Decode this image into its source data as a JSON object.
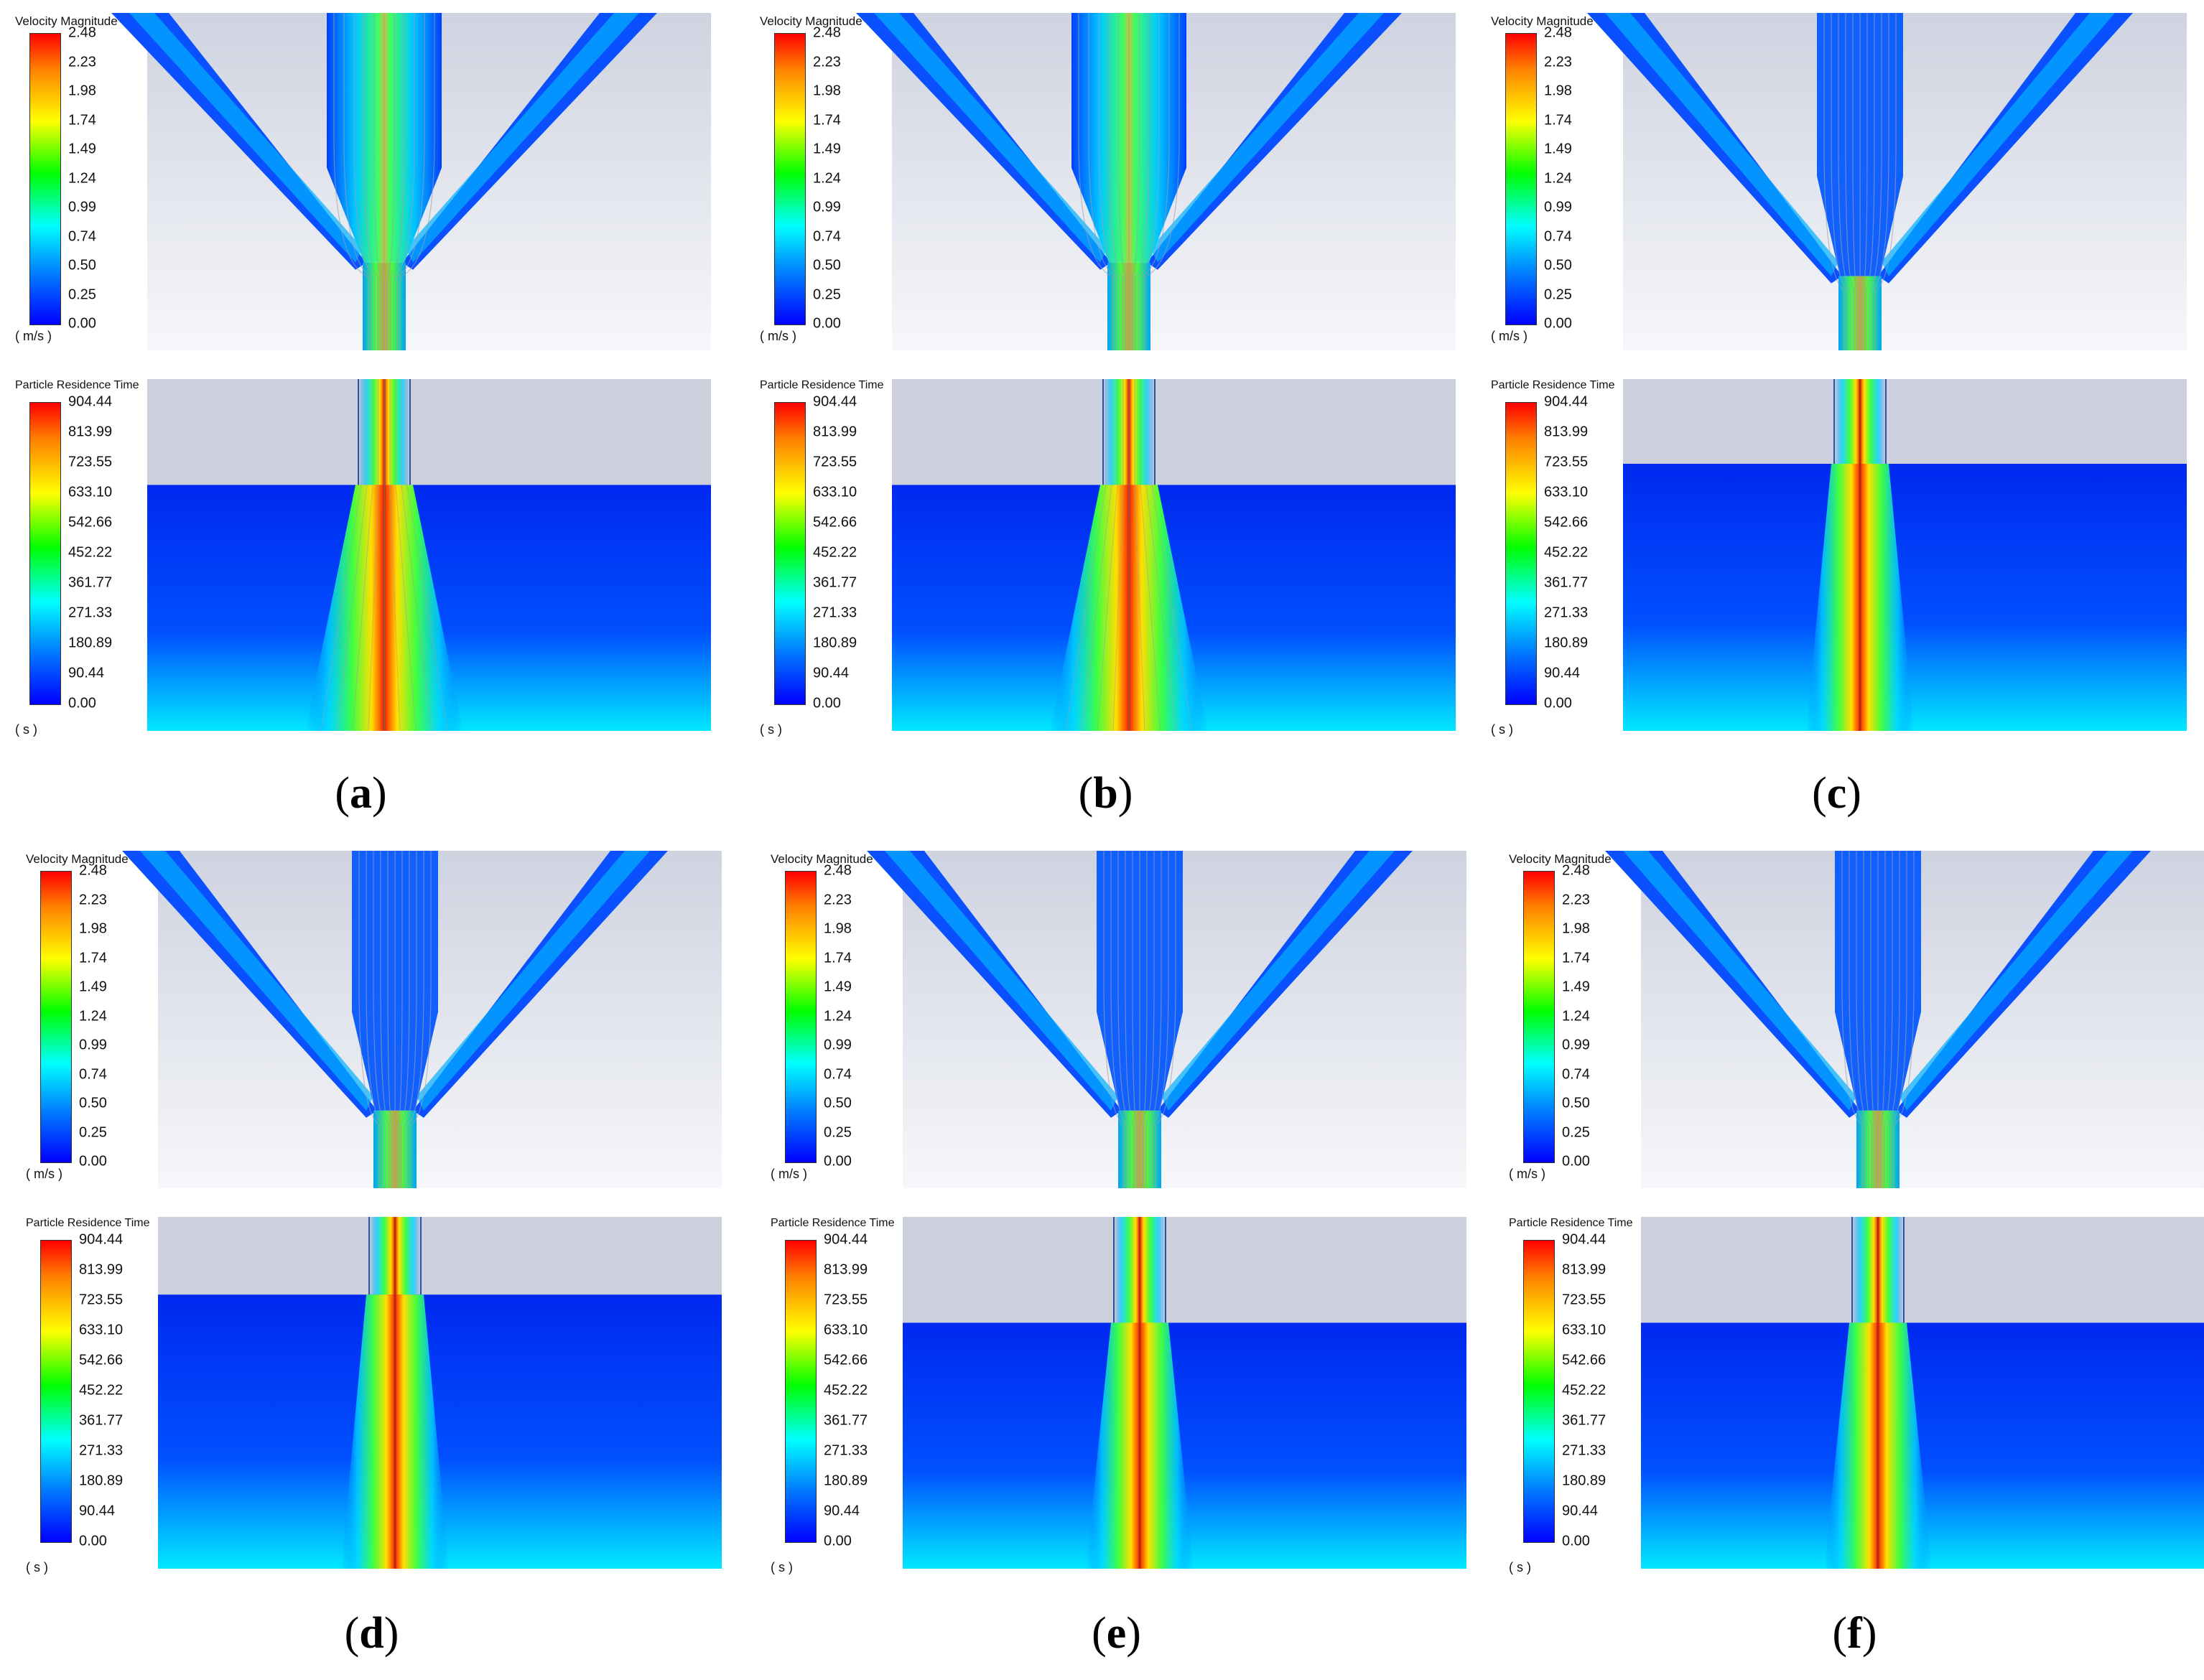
{
  "figure": {
    "velocity_legend": {
      "title": "Velocity Magnitude",
      "ticks": [
        "2.48",
        "2.23",
        "1.98",
        "1.74",
        "1.49",
        "1.24",
        "0.99",
        "0.74",
        "0.50",
        "0.25",
        "0.00"
      ],
      "unit": "( m/s )"
    },
    "residence_legend": {
      "title": "Particle Residence Time",
      "ticks": [
        "904.44",
        "813.99",
        "723.55",
        "633.10",
        "542.66",
        "452.22",
        "361.77",
        "271.33",
        "180.89",
        "90.44",
        "0.00"
      ],
      "unit": "( s )"
    },
    "colormap": [
      "#0000ff",
      "#0080ff",
      "#00ffff",
      "#00ff00",
      "#ffff00",
      "#ff8000",
      "#ff0000"
    ],
    "panels": [
      {
        "id": "a",
        "label": "a"
      },
      {
        "id": "b",
        "label": "b"
      },
      {
        "id": "c",
        "label": "c"
      },
      {
        "id": "d",
        "label": "d"
      },
      {
        "id": "e",
        "label": "e"
      },
      {
        "id": "f",
        "label": "f"
      }
    ]
  }
}
